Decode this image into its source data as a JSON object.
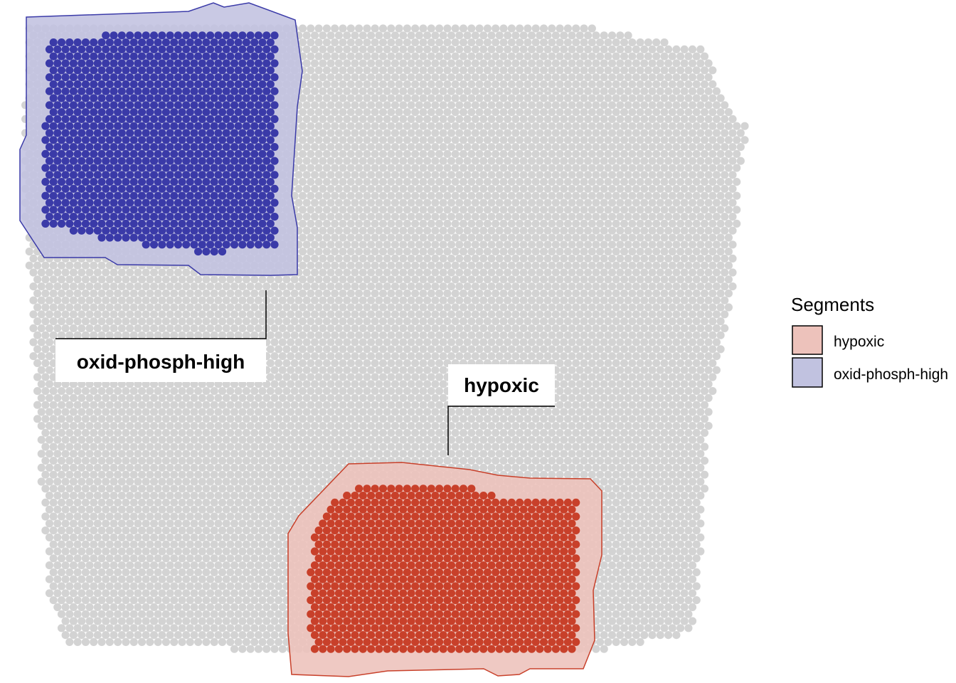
{
  "chart_data": {
    "type": "scatter",
    "title": "",
    "xlabel": "",
    "ylabel": "",
    "grid": false,
    "background_spot_color": "#d3d3d3",
    "series": [
      {
        "name": "hypoxic",
        "spot_color": "#c8402a",
        "fill_color": "#edc2bb",
        "outline_color": "#c8402a"
      },
      {
        "name": "oxid-phosph-high",
        "spot_color": "#3a3aa8",
        "fill_color": "#c1c2e0",
        "outline_color": "#3a3aa8"
      }
    ],
    "annotations": [
      {
        "text": "oxid-phosph-high",
        "segment": "oxid-phosph-high"
      },
      {
        "text": "hypoxic",
        "segment": "hypoxic"
      }
    ],
    "legend": {
      "title": "Segments",
      "placement": "right",
      "entries": [
        "hypoxic",
        "oxid-phosph-high"
      ]
    }
  }
}
